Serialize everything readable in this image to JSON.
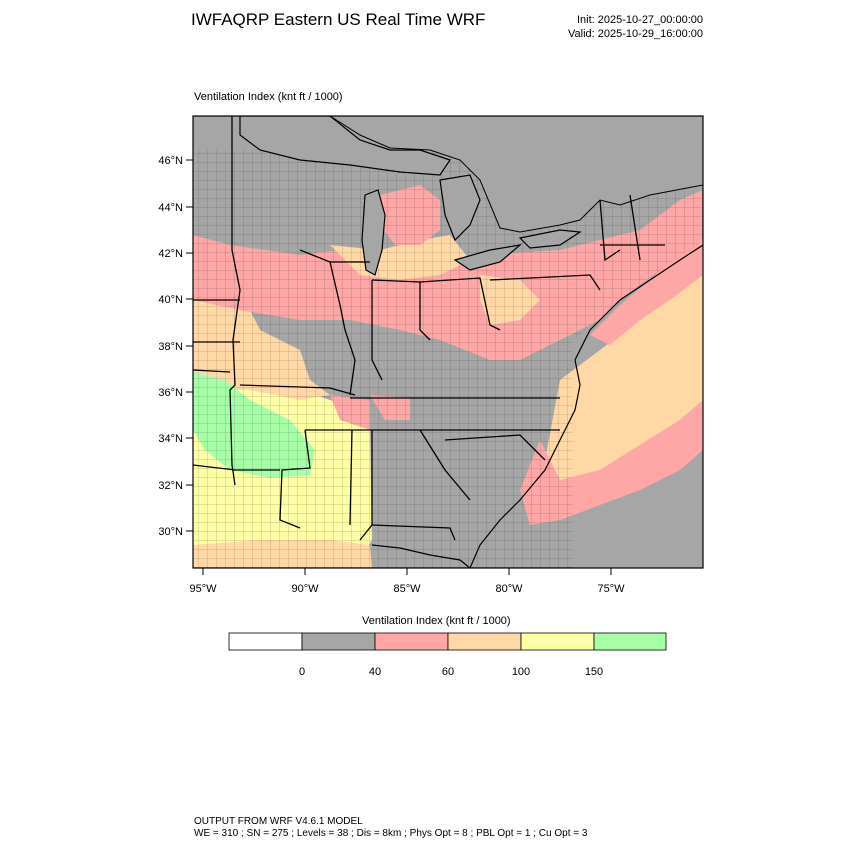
{
  "header": {
    "title": "IWFAQRP Eastern US Real Time WRF",
    "init": "Init: 2025-10-27_00:00:00",
    "valid": "Valid: 2025-10-29_16:00:00"
  },
  "map": {
    "field_label": "Ventilation Index   (knt ft / 1000)",
    "lat_labels": [
      "46°N",
      "44°N",
      "42°N",
      "40°N",
      "38°N",
      "36°N",
      "34°N",
      "32°N",
      "30°N"
    ],
    "lon_labels": [
      "95°W",
      "90°W",
      "85°W",
      "80°W",
      "75°W"
    ],
    "water_color": "#a6a6a6"
  },
  "legend": {
    "title": "Ventilation Index  (knt ft / 1000)",
    "bins": [
      {
        "color": "#ffffff"
      },
      {
        "color": "#a6a6a6"
      },
      {
        "color": "#ffa6a6"
      },
      {
        "color": "#ffd8a6"
      },
      {
        "color": "#ffffa6"
      },
      {
        "color": "#a6ffa6"
      }
    ],
    "tick_labels": [
      "0",
      "40",
      "60",
      "100",
      "150"
    ]
  },
  "footer": {
    "line1": "OUTPUT FROM WRF V4.6.1 MODEL",
    "line2": "WE = 310 ; SN = 275 ; Levels = 38 ; Dis = 8km ; Phys Opt = 8 ; PBL Opt = 1 ; Cu Opt = 3"
  }
}
